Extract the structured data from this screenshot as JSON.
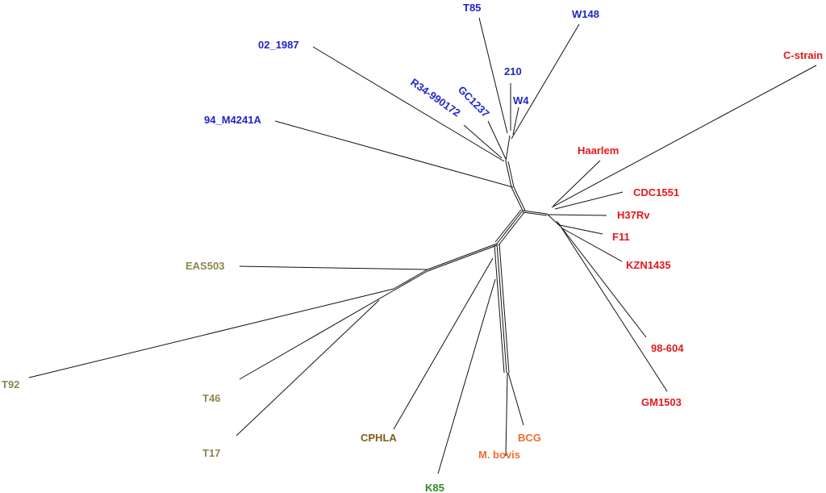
{
  "colors": {
    "lineage_blue": "#1f26c8",
    "lineage_red": "#e3191c",
    "lineage_olive": "#8c8650",
    "lineage_brown": "#7d5e14",
    "lineage_orange": "#ec6f2e",
    "lineage_green": "#2f8a22"
  },
  "taxa": {
    "t85": "T85",
    "w148": "W148",
    "t210": "210",
    "w4": "W4",
    "gc1237": "GC1237",
    "r34": "R34-990172",
    "o2_1987": "02_1987",
    "m4241a": "94_M4241A",
    "c_strain": "C-strain",
    "haarlem": "Haarlem",
    "cdc1551": "CDC1551",
    "h37rv": "H37Rv",
    "f11": "F11",
    "kzn1435": "KZN1435",
    "n98_604": "98-604",
    "gm1503": "GM1503",
    "eas503": "EAS503",
    "t92": "T92",
    "t46": "T46",
    "t17": "T17",
    "cphla": "CPHLA",
    "k85": "K85",
    "m_bovis": "M. bovis",
    "bcg": "BCG"
  }
}
